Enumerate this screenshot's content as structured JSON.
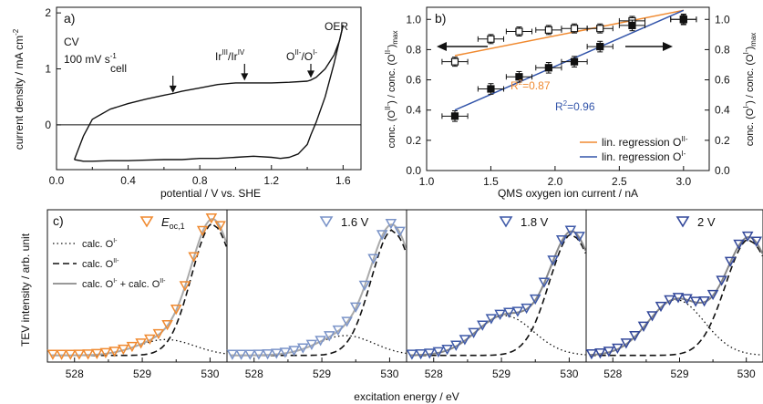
{
  "chart_data": [
    {
      "type": "line",
      "panel_label": "a)",
      "xlabel": "potential / V vs. SHE",
      "ylabel": "current density / mA cm",
      "ylabel_sup": "-2",
      "xlim": [
        0.0,
        1.7
      ],
      "ylim": [
        -0.8,
        2.1
      ],
      "xticks": [
        "0.0",
        "0.4",
        "0.8",
        "1.2",
        "1.6"
      ],
      "yticks": [
        "0",
        "1",
        "2"
      ],
      "annotations": {
        "cv": "CV",
        "scan_rate": "100 mV s",
        "scan_rate_sup": "-1",
        "cell": "cell",
        "ir_a": "Ir",
        "ir_a_sup": "III",
        "ir_b": "/Ir",
        "ir_b_sup": "IV",
        "o_a": "O",
        "o_a_sup": "II-",
        "o_b": "/O",
        "o_b_sup": "I-",
        "oer": "OER"
      },
      "series": [
        {
          "x": [
            0.1,
            0.15,
            0.2,
            0.3,
            0.4,
            0.5,
            0.6,
            0.65,
            0.7,
            0.8,
            0.9,
            1.0,
            1.05,
            1.1,
            1.2,
            1.3,
            1.4,
            1.42,
            1.45,
            1.5,
            1.55,
            1.58,
            1.6
          ],
          "y": [
            -0.62,
            -0.2,
            0.1,
            0.28,
            0.38,
            0.46,
            0.53,
            0.56,
            0.6,
            0.66,
            0.72,
            0.75,
            0.75,
            0.75,
            0.75,
            0.76,
            0.78,
            0.8,
            0.85,
            1.0,
            1.25,
            1.5,
            1.78
          ]
        },
        {
          "x": [
            1.6,
            1.55,
            1.5,
            1.45,
            1.42,
            1.4,
            1.35,
            1.3,
            1.25,
            1.2,
            1.1,
            1.0,
            0.9,
            0.8,
            0.7,
            0.6,
            0.5,
            0.4,
            0.3,
            0.2,
            0.15,
            0.1
          ],
          "y": [
            1.78,
            1.1,
            0.5,
            0.05,
            -0.18,
            -0.35,
            -0.52,
            -0.58,
            -0.6,
            -0.58,
            -0.56,
            -0.58,
            -0.6,
            -0.6,
            -0.62,
            -0.62,
            -0.63,
            -0.64,
            -0.64,
            -0.65,
            -0.65,
            -0.62
          ]
        }
      ]
    },
    {
      "type": "scatter",
      "panel_label": "b)",
      "xlabel": "QMS oxygen ion current / nA",
      "ylabel_left": "conc. (O",
      "ylabel_left_sup1": "II-",
      "ylabel_left_mid": ") / conc. (O",
      "ylabel_left_sup2": "II-",
      "ylabel_left_end": ")",
      "ylabel_left_sub": "max",
      "ylabel_right": "conc. (O",
      "ylabel_right_sup1": "I-",
      "ylabel_right_mid": ") / conc. (O",
      "ylabel_right_sup2": "I-",
      "ylabel_right_end": ")",
      "ylabel_right_sub": "max",
      "xlim": [
        1.0,
        3.2
      ],
      "ylim": [
        0.0,
        1.08
      ],
      "xticks": [
        "1.0",
        "1.5",
        "2.0",
        "2.5",
        "3.0"
      ],
      "yticks": [
        "0.0",
        "0.2",
        "0.4",
        "0.6",
        "0.8",
        "1.0"
      ],
      "r2_orange": "R",
      "r2_orange_sup": "2",
      "r2_orange_val": "=0.87",
      "r2_blue": "R",
      "r2_blue_sup": "2",
      "r2_blue_val": "=0.96",
      "legend": [
        {
          "label": "lin. regression O",
          "sup": "II-",
          "color": "#f08a30"
        },
        {
          "label": "lin. regression O",
          "sup": "I-",
          "color": "#3355aa"
        }
      ],
      "legend_position": "bottom-right",
      "series": [
        {
          "marker": "open-square",
          "x": [
            1.22,
            1.5,
            1.72,
            1.95,
            2.15,
            2.35,
            2.6,
            3.0
          ],
          "y": [
            0.72,
            0.87,
            0.92,
            0.93,
            0.94,
            0.94,
            0.99,
            1.0
          ],
          "xerr": 0.1,
          "yerr": 0.03
        },
        {
          "marker": "filled-square",
          "x": [
            1.22,
            1.5,
            1.72,
            1.95,
            2.15,
            2.35,
            2.6,
            3.0
          ],
          "y": [
            0.36,
            0.54,
            0.62,
            0.68,
            0.72,
            0.82,
            0.96,
            1.0
          ],
          "xerr": 0.1,
          "yerr": 0.035
        }
      ],
      "regressions": [
        {
          "color": "#f08a30",
          "x": [
            1.22,
            3.0
          ],
          "y": [
            0.76,
            1.06
          ]
        },
        {
          "color": "#3355aa",
          "x": [
            1.22,
            3.0
          ],
          "y": [
            0.4,
            1.06
          ]
        }
      ]
    },
    {
      "type": "line",
      "panel_label": "c)",
      "ylabel": "TEV intensity / arb. unit",
      "xlabel": "excitation energy / eV",
      "xlim": [
        527.6,
        530.25
      ],
      "ylim": [
        0,
        1.15
      ],
      "xticks": [
        "528",
        "529",
        "530"
      ],
      "legend": [
        {
          "style": "dotted",
          "label": "calc. O",
          "sup": "I-"
        },
        {
          "style": "dashed",
          "label": "calc. O",
          "sup": "II-"
        },
        {
          "style": "solid-gray",
          "label": "calc. O",
          "sup": "I-",
          "label2": " + calc. O",
          "sup2": "II-"
        }
      ],
      "subpanels": [
        {
          "label": "E",
          "sub": "oc,1",
          "marker_color": "#f08a30",
          "line_color": "#aaaaaa",
          "dot_amp": 0.12,
          "dot_center": 529.35,
          "dash_amp": 1.0,
          "dash_center": 530.05,
          "dash_width": 0.32
        },
        {
          "label": "1.6 V",
          "sub": "",
          "marker_color": "#7a93c8",
          "line_color": "#aaaaaa",
          "dot_amp": 0.15,
          "dot_center": 529.35,
          "dash_amp": 0.95,
          "dash_center": 530.05,
          "dash_width": 0.32
        },
        {
          "label": "1.8 V",
          "sub": "",
          "marker_color": "#3f5aa8",
          "line_color": "#888888",
          "dot_amp": 0.3,
          "dot_center": 529.05,
          "dash_amp": 0.92,
          "dash_center": 530.05,
          "dash_width": 0.34
        },
        {
          "label": "2 V",
          "sub": "",
          "marker_color": "#33489a",
          "line_color": "#888888",
          "dot_amp": 0.42,
          "dot_center": 528.95,
          "dash_amp": 0.88,
          "dash_center": 530.05,
          "dash_width": 0.36
        }
      ]
    }
  ]
}
